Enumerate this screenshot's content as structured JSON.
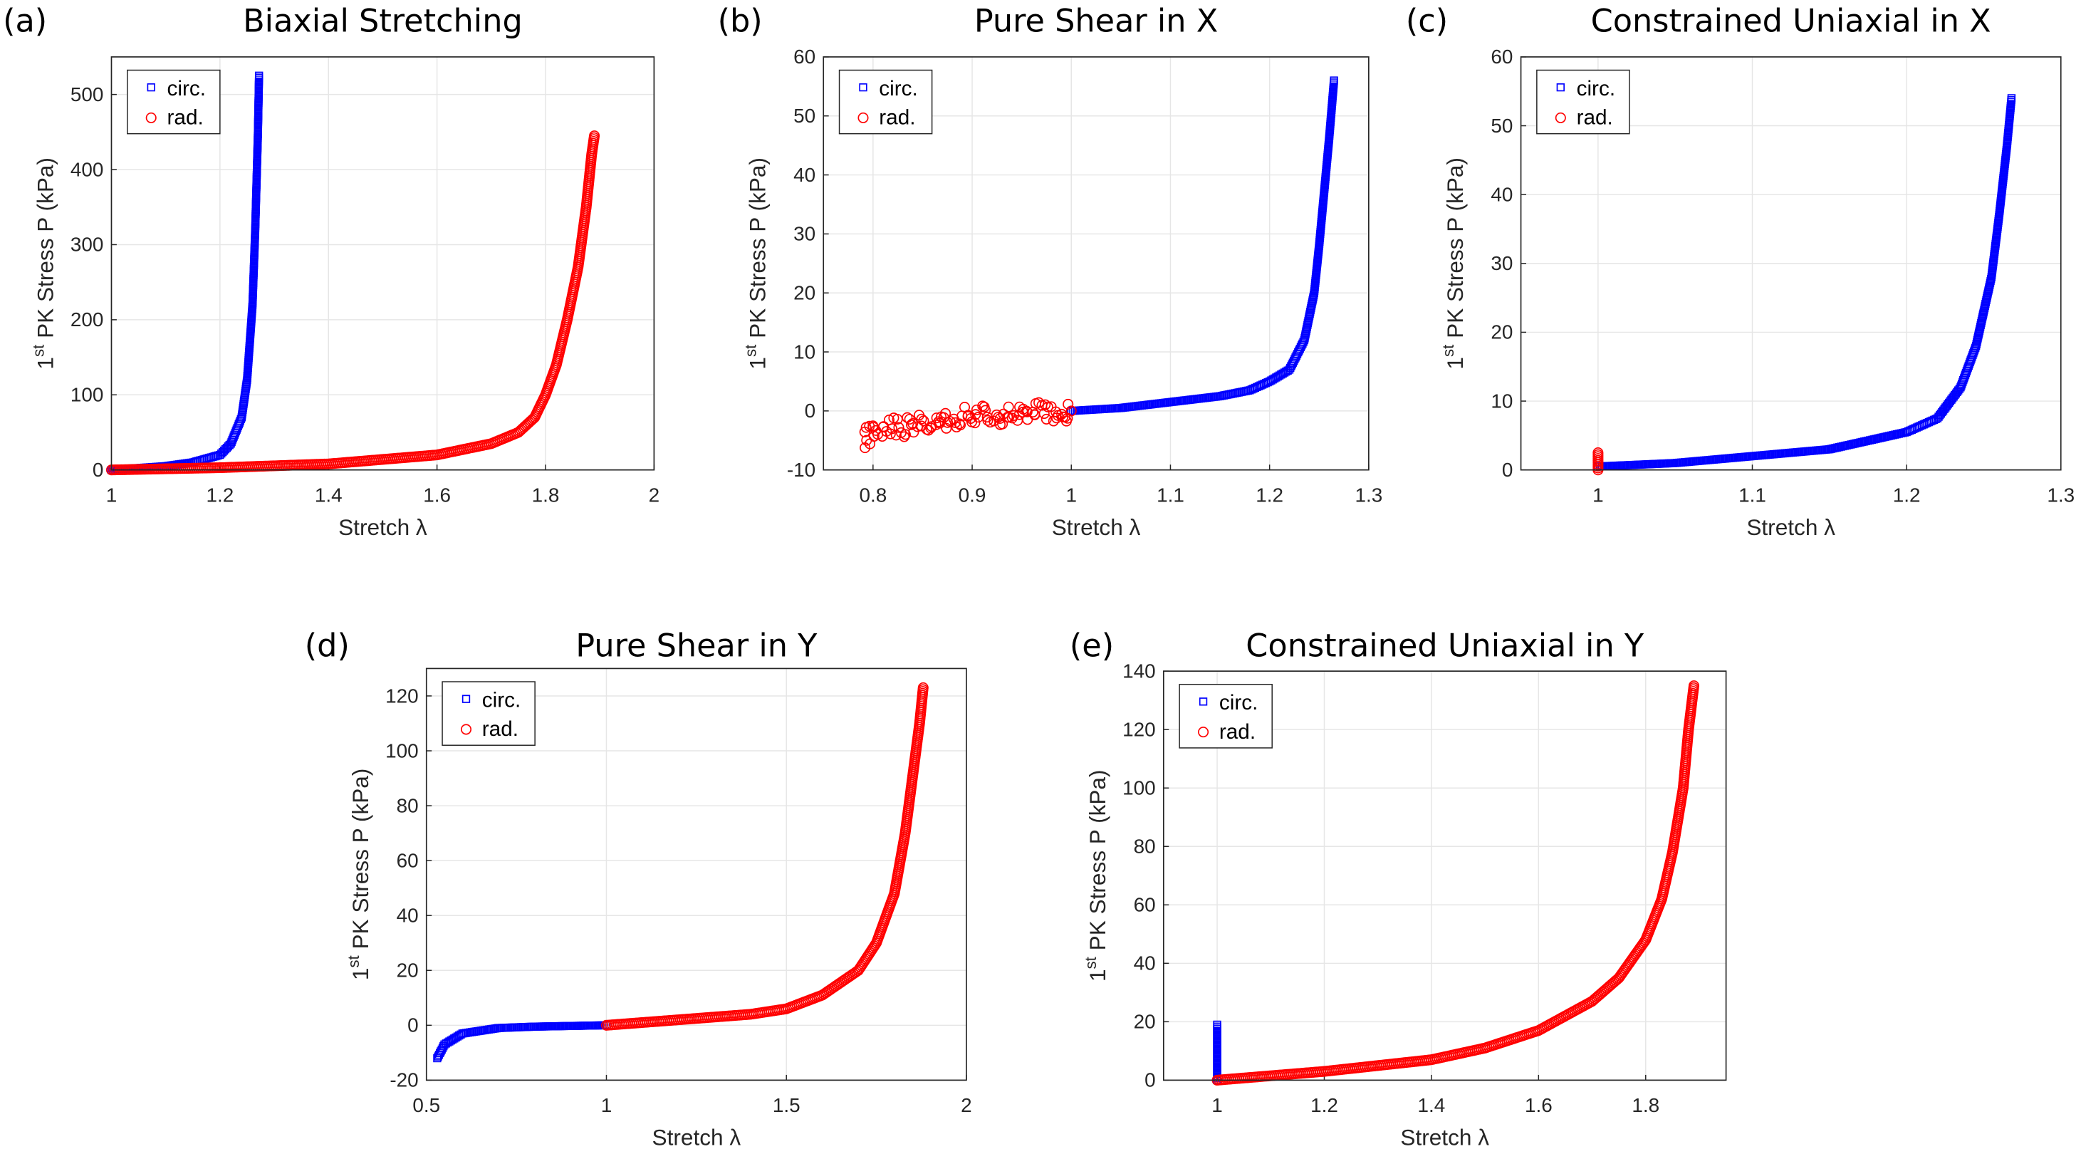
{
  "colors": {
    "circ": "#0000ff",
    "rad": "#ff0000",
    "grid": "#e6e6e6",
    "axis": "#262626"
  },
  "chart_data": [
    {
      "type": "scatter",
      "panel": "(a)",
      "title": "Biaxial Stretching",
      "xlabel": "Stretch λ",
      "ylabel_prefix": "1",
      "ylabel_sup": "st",
      "ylabel_rest": " PK Stress P (kPa)",
      "xlim": [
        1,
        2
      ],
      "ylim": [
        0,
        550
      ],
      "xticks": [
        1,
        1.2,
        1.4,
        1.6,
        1.8,
        2
      ],
      "xticklabels": [
        "1",
        "1.2",
        "1.4",
        "1.6",
        "1.8",
        "2"
      ],
      "yticks": [
        0,
        100,
        200,
        300,
        400,
        500
      ],
      "yticklabels": [
        "0",
        "100",
        "200",
        "300",
        "400",
        "500"
      ],
      "grid": true,
      "legend": "top-left",
      "series": [
        {
          "name": "circ.",
          "marker": "square",
          "points": [
            [
              1,
              0
            ],
            [
              1.1,
              5
            ],
            [
              1.15,
              10
            ],
            [
              1.2,
              20
            ],
            [
              1.22,
              35
            ],
            [
              1.24,
              70
            ],
            [
              1.25,
              120
            ],
            [
              1.26,
              220
            ],
            [
              1.265,
              320
            ],
            [
              1.27,
              450
            ],
            [
              1.272,
              525
            ]
          ]
        },
        {
          "name": "rad.",
          "marker": "circle",
          "points": [
            [
              1,
              0
            ],
            [
              1.2,
              3
            ],
            [
              1.4,
              8
            ],
            [
              1.6,
              20
            ],
            [
              1.7,
              35
            ],
            [
              1.75,
              50
            ],
            [
              1.78,
              70
            ],
            [
              1.8,
              100
            ],
            [
              1.82,
              140
            ],
            [
              1.84,
              200
            ],
            [
              1.86,
              270
            ],
            [
              1.875,
              350
            ],
            [
              1.885,
              420
            ],
            [
              1.89,
              445
            ]
          ]
        }
      ]
    },
    {
      "type": "scatter",
      "panel": "(b)",
      "title": "Pure Shear in X",
      "xlabel": "Stretch λ",
      "ylabel_prefix": "1",
      "ylabel_sup": "st",
      "ylabel_rest": " PK Stress P (kPa)",
      "xlim": [
        0.75,
        1.3
      ],
      "ylim": [
        -10,
        60
      ],
      "xticks": [
        0.8,
        0.9,
        1,
        1.1,
        1.2,
        1.3
      ],
      "xticklabels": [
        "0.8",
        "0.9",
        "1",
        "1.1",
        "1.2",
        "1.3"
      ],
      "yticks": [
        -10,
        0,
        10,
        20,
        30,
        40,
        50,
        60
      ],
      "yticklabels": [
        "-10",
        "0",
        "10",
        "20",
        "30",
        "40",
        "50",
        "60"
      ],
      "grid": true,
      "legend": "top-left",
      "series": [
        {
          "name": "circ.",
          "marker": "square",
          "points": [
            [
              1,
              0
            ],
            [
              1.05,
              0.5
            ],
            [
              1.1,
              1.5
            ],
            [
              1.15,
              2.5
            ],
            [
              1.18,
              3.5
            ],
            [
              1.2,
              5
            ],
            [
              1.22,
              7
            ],
            [
              1.235,
              12
            ],
            [
              1.245,
              20
            ],
            [
              1.25,
              28
            ],
            [
              1.255,
              37
            ],
            [
              1.26,
              46
            ],
            [
              1.265,
              56
            ]
          ]
        },
        {
          "name": "rad.",
          "marker": "circle",
          "noisy": true,
          "points": [
            [
              0.79,
              -5
            ],
            [
              0.8,
              -3.5
            ],
            [
              0.85,
              -2
            ],
            [
              0.9,
              -1
            ],
            [
              0.95,
              -0.5
            ],
            [
              1.0,
              0
            ]
          ]
        }
      ]
    },
    {
      "type": "scatter",
      "panel": "(c)",
      "title": "Constrained Uniaxial in X",
      "xlabel": "Stretch λ",
      "ylabel_prefix": "1",
      "ylabel_sup": "st",
      "ylabel_rest": " PK Stress P (kPa)",
      "xlim": [
        0.95,
        1.3
      ],
      "ylim": [
        0,
        60
      ],
      "xticks": [
        1,
        1.1,
        1.2,
        1.3
      ],
      "xticklabels": [
        "1",
        "1.1",
        "1.2",
        "1.3"
      ],
      "yticks": [
        0,
        10,
        20,
        30,
        40,
        50,
        60
      ],
      "yticklabels": [
        "0",
        "10",
        "20",
        "30",
        "40",
        "50",
        "60"
      ],
      "grid": true,
      "legend": "top-left",
      "series": [
        {
          "name": "circ.",
          "marker": "square",
          "points": [
            [
              1,
              0.5
            ],
            [
              1.05,
              1
            ],
            [
              1.1,
              2
            ],
            [
              1.15,
              3
            ],
            [
              1.2,
              5.5
            ],
            [
              1.22,
              7.5
            ],
            [
              1.235,
              12
            ],
            [
              1.245,
              18
            ],
            [
              1.255,
              28
            ],
            [
              1.26,
              37
            ],
            [
              1.265,
              47
            ],
            [
              1.268,
              54
            ]
          ]
        },
        {
          "name": "rad.",
          "marker": "circle",
          "points": [
            [
              1,
              0
            ],
            [
              1,
              2.5
            ]
          ]
        }
      ]
    },
    {
      "type": "scatter",
      "panel": "(d)",
      "title": "Pure Shear in Y",
      "xlabel": "Stretch λ",
      "ylabel_prefix": "1",
      "ylabel_sup": "st",
      "ylabel_rest": " PK Stress P (kPa)",
      "xlim": [
        0.5,
        2
      ],
      "ylim": [
        -20,
        130
      ],
      "xticks": [
        0.5,
        1,
        1.5,
        2
      ],
      "xticklabels": [
        "0.5",
        "1",
        "1.5",
        "2"
      ],
      "yticks": [
        -20,
        0,
        20,
        40,
        60,
        80,
        100,
        120
      ],
      "yticklabels": [
        "-20",
        "0",
        "20",
        "40",
        "60",
        "80",
        "100",
        "120"
      ],
      "grid": true,
      "legend": "top-left",
      "series": [
        {
          "name": "circ.",
          "marker": "square",
          "points": [
            [
              0.53,
              -12
            ],
            [
              0.55,
              -7
            ],
            [
              0.6,
              -3
            ],
            [
              0.7,
              -1
            ],
            [
              0.8,
              -0.5
            ],
            [
              1,
              0
            ]
          ]
        },
        {
          "name": "rad.",
          "marker": "circle",
          "points": [
            [
              1,
              0
            ],
            [
              1.2,
              2
            ],
            [
              1.4,
              4
            ],
            [
              1.5,
              6
            ],
            [
              1.6,
              11
            ],
            [
              1.7,
              20
            ],
            [
              1.75,
              30
            ],
            [
              1.8,
              48
            ],
            [
              1.83,
              70
            ],
            [
              1.85,
              90
            ],
            [
              1.87,
              110
            ],
            [
              1.88,
              123
            ]
          ]
        }
      ]
    },
    {
      "type": "scatter",
      "panel": "(e)",
      "title": "Constrained Uniaxial in Y",
      "xlabel": "Stretch λ",
      "ylabel_prefix": "1",
      "ylabel_sup": "st",
      "ylabel_rest": " PK Stress P (kPa)",
      "xlim": [
        0.9,
        1.95
      ],
      "ylim": [
        0,
        140
      ],
      "xticks": [
        1,
        1.2,
        1.4,
        1.6,
        1.8
      ],
      "xticklabels": [
        "1",
        "1.2",
        "1.4",
        "1.6",
        "1.8"
      ],
      "yticks": [
        0,
        20,
        40,
        60,
        80,
        100,
        120,
        140
      ],
      "yticklabels": [
        "0",
        "20",
        "40",
        "60",
        "80",
        "100",
        "120",
        "140"
      ],
      "grid": true,
      "legend": "top-left",
      "series": [
        {
          "name": "circ.",
          "marker": "square",
          "points": [
            [
              1,
              0
            ],
            [
              1,
              19
            ]
          ]
        },
        {
          "name": "rad.",
          "marker": "circle",
          "points": [
            [
              1,
              0
            ],
            [
              1.2,
              3
            ],
            [
              1.4,
              7
            ],
            [
              1.5,
              11
            ],
            [
              1.6,
              17
            ],
            [
              1.7,
              27
            ],
            [
              1.75,
              35
            ],
            [
              1.8,
              48
            ],
            [
              1.83,
              62
            ],
            [
              1.85,
              78
            ],
            [
              1.87,
              100
            ],
            [
              1.88,
              120
            ],
            [
              1.89,
              135
            ]
          ]
        }
      ]
    }
  ]
}
